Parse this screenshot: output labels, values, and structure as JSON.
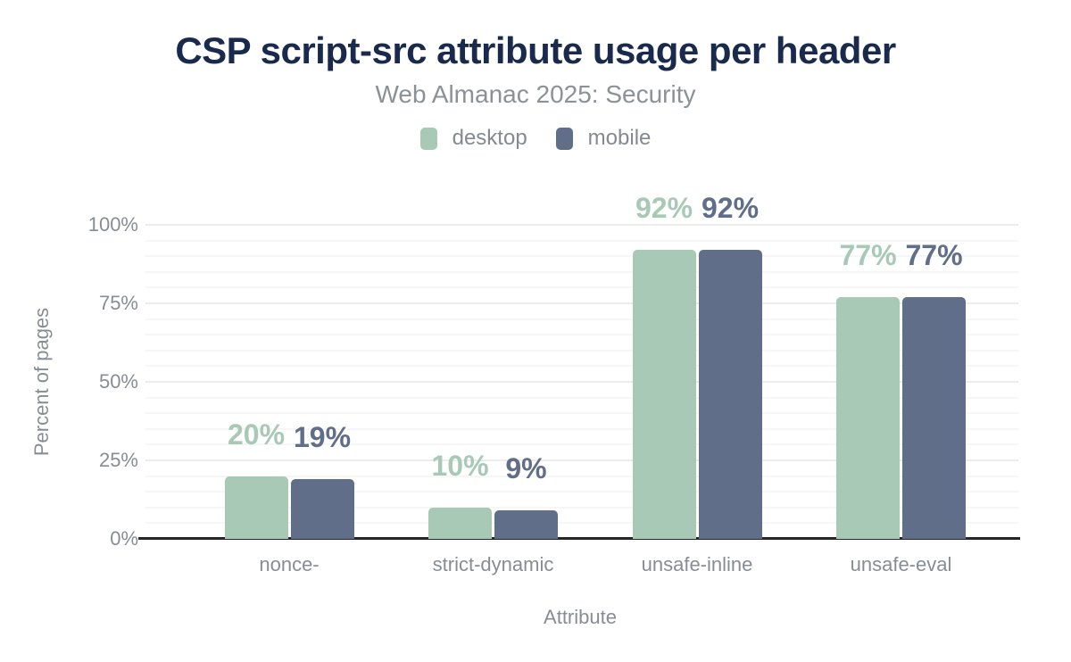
{
  "title": "CSP script-src attribute usage per header",
  "subtitle": "Web Almanac 2025: Security",
  "legend": {
    "items": [
      {
        "label": "desktop",
        "color": "#a7c9b6"
      },
      {
        "label": "mobile",
        "color": "#606e89"
      }
    ]
  },
  "colors": {
    "title_text": "#1a2a4d",
    "muted_text": "#878d94",
    "axis_line": "#262626",
    "grid_minor": "#f6f6f6",
    "grid_major": "#ececec",
    "desktop": "#a7c9b6",
    "mobile": "#606e89"
  },
  "chart_data": {
    "type": "bar",
    "title": "CSP script-src attribute usage per header",
    "subtitle": "Web Almanac 2025: Security",
    "categories": [
      "nonce-",
      "strict-dynamic",
      "unsafe-inline",
      "unsafe-eval"
    ],
    "series": [
      {
        "name": "desktop",
        "color": "#a7c9b6",
        "values": [
          20,
          10,
          92,
          77
        ]
      },
      {
        "name": "mobile",
        "color": "#606e89",
        "values": [
          19,
          9,
          92,
          77
        ]
      }
    ],
    "data_labels": [
      "20%",
      "19%",
      "10%",
      "9%",
      "92%",
      "92%",
      "77%",
      "77%"
    ],
    "xlabel": "Attribute",
    "ylabel": "Percent of pages",
    "ylim": [
      0,
      100
    ],
    "yticks": [
      0,
      25,
      50,
      75,
      100
    ],
    "ytick_labels": [
      "0%",
      "25%",
      "50%",
      "75%",
      "100%"
    ],
    "minor_grid_step": 5,
    "major_grid_step": 25,
    "grid": true,
    "legend_position": "top",
    "value_suffix": "%"
  }
}
